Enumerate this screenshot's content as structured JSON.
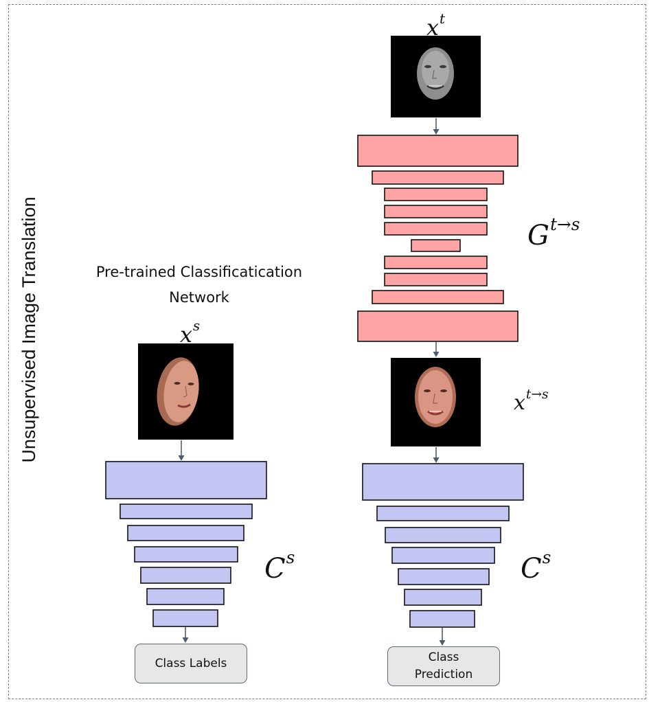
{
  "diagram": {
    "side_title": "Unsupervised Image Translation",
    "pretrained": {
      "line1": "Pre-trained Classificatication",
      "line2": "Network"
    },
    "source_input": {
      "symbol": "x",
      "sup": "s",
      "photo_icon": "face-photo-source-icon"
    },
    "target_input": {
      "symbol": "x",
      "sup": "t",
      "photo_icon": "face-photo-target-grayscale-icon"
    },
    "translated": {
      "symbol": "x",
      "sup": "t→s",
      "photo_icon": "face-photo-translated-icon"
    },
    "generator": {
      "symbol": "G",
      "sup": "t→s"
    },
    "classifier_left": {
      "symbol": "C",
      "sup": "s"
    },
    "classifier_right": {
      "symbol": "C",
      "sup": "s"
    },
    "output_left": {
      "label": "Class Labels"
    },
    "output_right": {
      "line1": "Class",
      "line2": "Prediction"
    },
    "colors": {
      "generator_fill": "#ffa4a4",
      "classifier_fill": "#c3c5f3",
      "block_stroke": "#111111",
      "arrow": "#4d5d70",
      "frame": "#737b88",
      "output_box_fill": "#e7e7e7"
    }
  }
}
